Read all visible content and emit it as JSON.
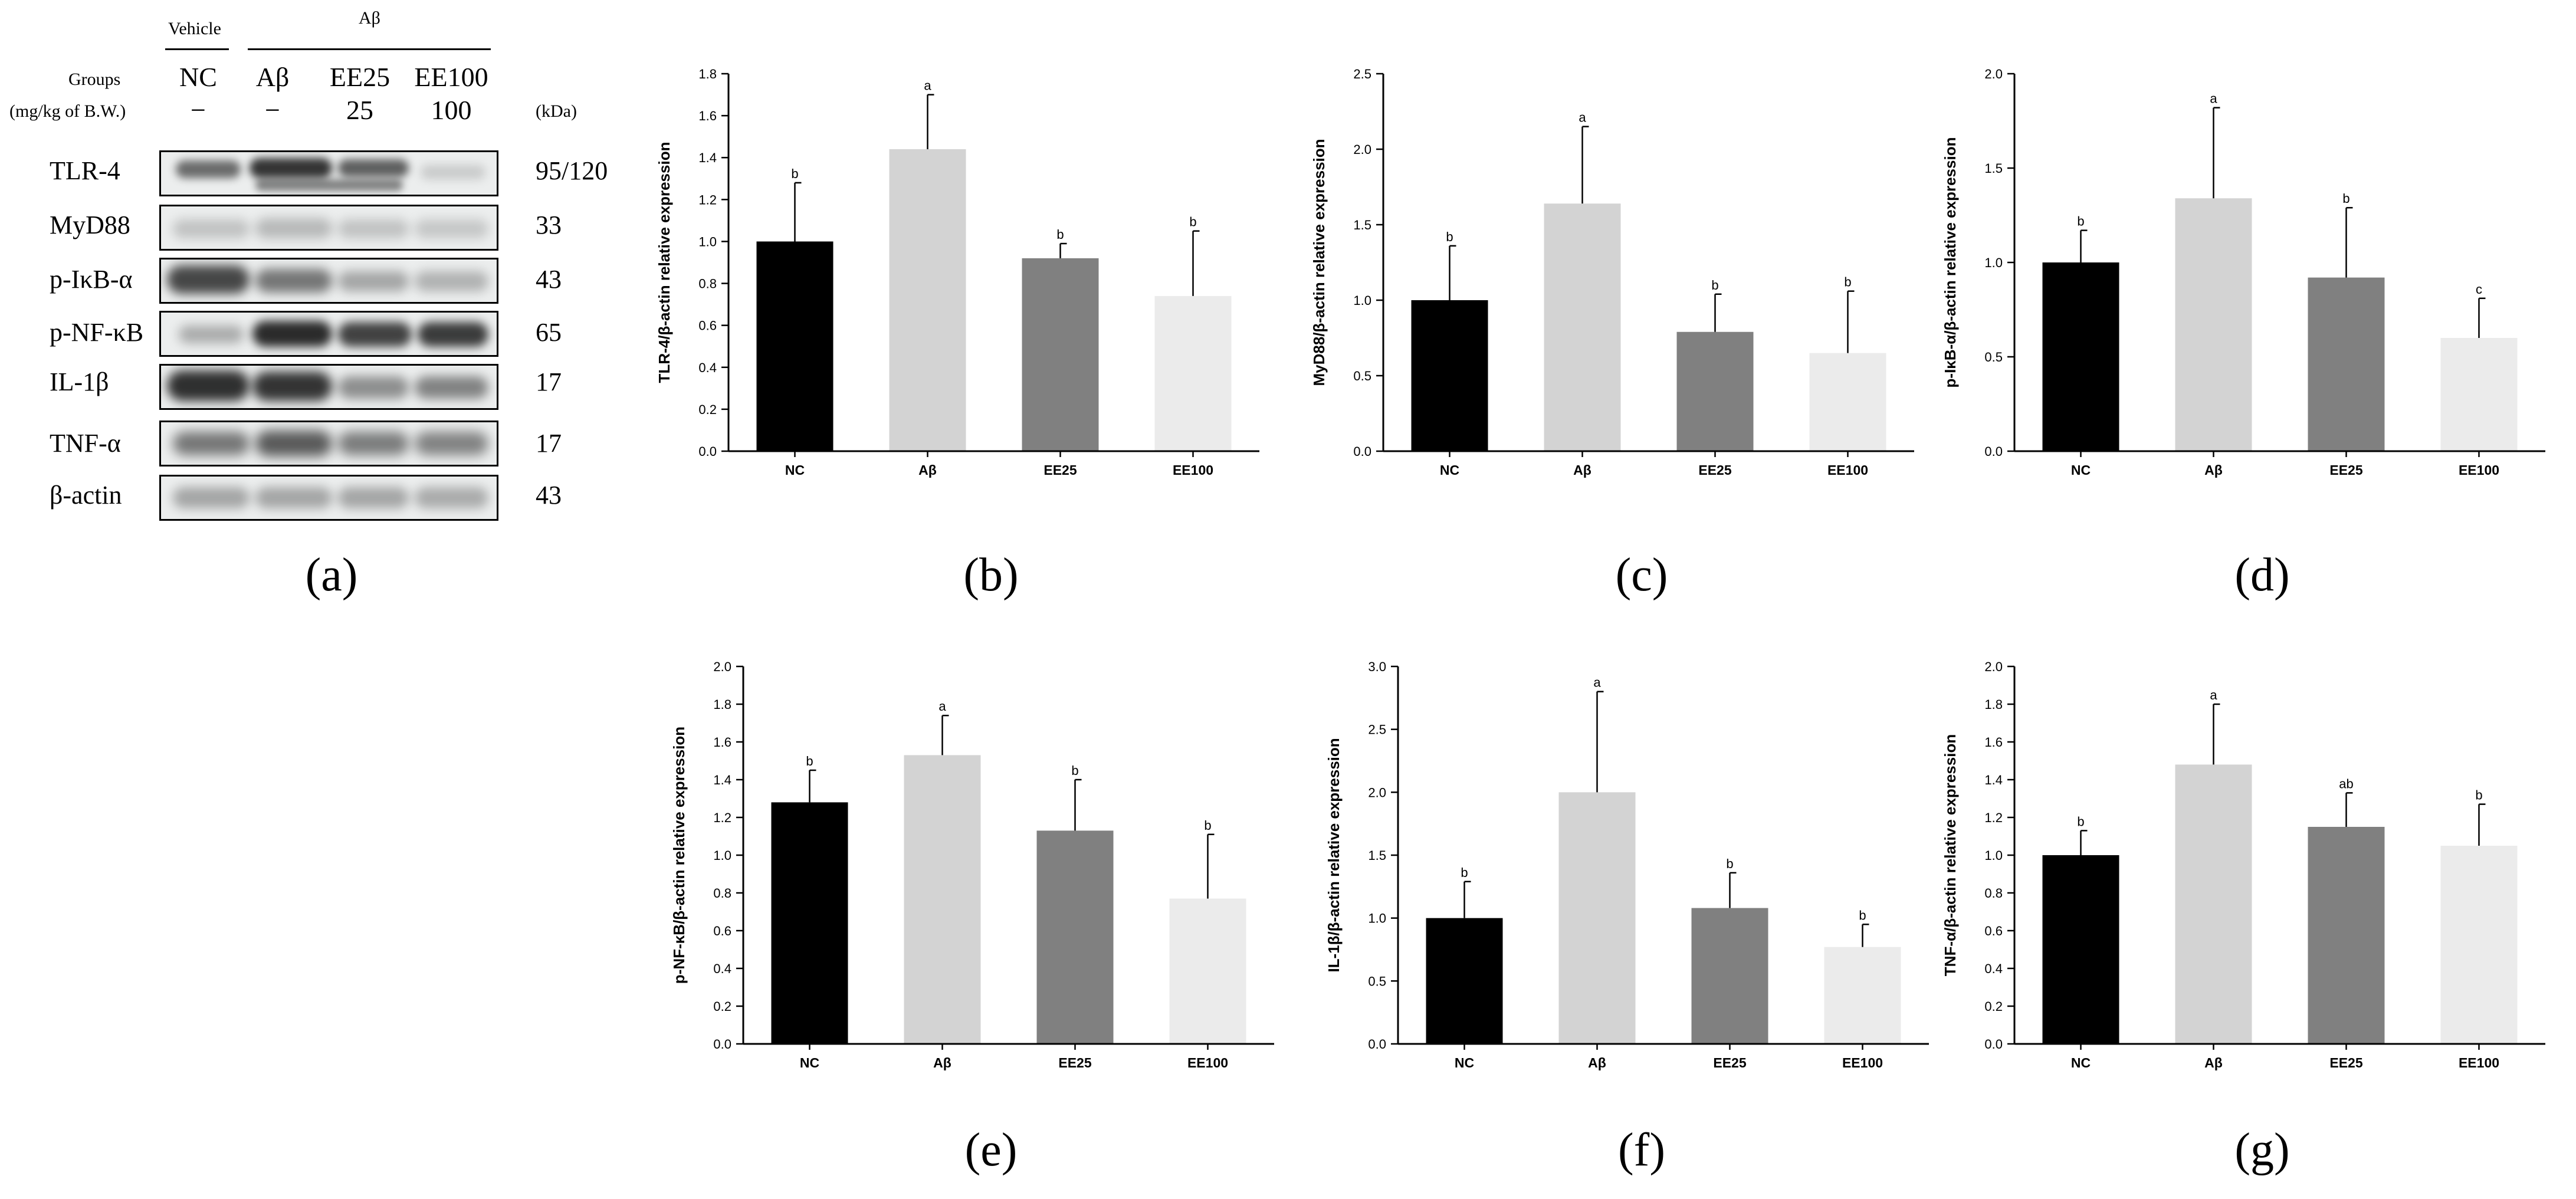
{
  "blot": {
    "vehicle_label": "Vehicle",
    "abeta_label": "Aβ",
    "groups_label": "Groups",
    "dose_label": "(mg/kg of B.W.)",
    "kda_label": "(kDa)",
    "lanes": [
      {
        "name": "NC",
        "dose": "−"
      },
      {
        "name": "Aβ",
        "dose": "−"
      },
      {
        "name": "EE25",
        "dose": "25"
      },
      {
        "name": "EE100",
        "dose": "100"
      }
    ],
    "proteins": [
      {
        "name": "TLR-4",
        "kda": "95/120"
      },
      {
        "name": "MyD88",
        "kda": "33"
      },
      {
        "name": "p-IκB-α",
        "kda": "43"
      },
      {
        "name": "p-NF-κB",
        "kda": "65"
      },
      {
        "name": "IL-1β",
        "kda": "17"
      },
      {
        "name": "TNF-α",
        "kda": "17"
      },
      {
        "name": "β-actin",
        "kda": "43"
      }
    ],
    "caption": "(a)"
  },
  "colors": {
    "bars": [
      "#000000",
      "#d3d3d3",
      "#808080",
      "#ebebeb"
    ],
    "axis": "#000000",
    "blot_bg": "#eceeee"
  },
  "chart_data": [
    {
      "panel": "(b)",
      "type": "bar",
      "categories": [
        "NC",
        "Aβ",
        "EE25",
        "EE100"
      ],
      "values": [
        1.0,
        1.44,
        0.92,
        0.74
      ],
      "errors": [
        0.28,
        0.26,
        0.07,
        0.31
      ],
      "letters": [
        "b",
        "a",
        "b",
        "b"
      ],
      "ylabel": "TLR-4/β-actin relative expression",
      "ylim": [
        0,
        1.8
      ],
      "ticks": [
        "0.0",
        "0.2",
        "0.4",
        "0.6",
        "0.8",
        "1.0",
        "1.2",
        "1.4",
        "1.6",
        "1.8"
      ]
    },
    {
      "panel": "(c)",
      "type": "bar",
      "categories": [
        "NC",
        "Aβ",
        "EE25",
        "EE100"
      ],
      "values": [
        1.0,
        1.64,
        0.79,
        0.65
      ],
      "errors": [
        0.36,
        0.51,
        0.25,
        0.41
      ],
      "letters": [
        "b",
        "a",
        "b",
        "b"
      ],
      "ylabel": "MyD88/β-actin relative expression",
      "ylim": [
        0,
        2.5
      ],
      "ticks": [
        "0.0",
        "0.5",
        "1.0",
        "1.5",
        "2.0",
        "2.5"
      ]
    },
    {
      "panel": "(d)",
      "type": "bar",
      "categories": [
        "NC",
        "Aβ",
        "EE25",
        "EE100"
      ],
      "values": [
        1.0,
        1.34,
        0.92,
        0.6
      ],
      "errors": [
        0.17,
        0.48,
        0.37,
        0.21
      ],
      "letters": [
        "b",
        "a",
        "b",
        "c"
      ],
      "ylabel": "p-IκB-α/β-actin relative expression",
      "ylim": [
        0,
        2.0
      ],
      "ticks": [
        "0.0",
        "0.5",
        "1.0",
        "1.5",
        "2.0"
      ]
    },
    {
      "panel": "(e)",
      "type": "bar",
      "categories": [
        "NC",
        "Aβ",
        "EE25",
        "EE100"
      ],
      "values": [
        1.28,
        1.53,
        1.13,
        0.77
      ],
      "errors": [
        0.17,
        0.21,
        0.27,
        0.34
      ],
      "letters": [
        "b",
        "a",
        "b",
        "b"
      ],
      "ylabel": "p-NF-κB/β-actin relative expression",
      "ylim": [
        0,
        2.0
      ],
      "ticks": [
        "0.0",
        "0.2",
        "0.4",
        "0.6",
        "0.8",
        "1.0",
        "1.2",
        "1.4",
        "1.6",
        "1.8",
        "2.0"
      ]
    },
    {
      "panel": "(f)",
      "type": "bar",
      "categories": [
        "NC",
        "Aβ",
        "EE25",
        "EE100"
      ],
      "values": [
        1.0,
        2.0,
        1.08,
        0.77
      ],
      "errors": [
        0.29,
        0.8,
        0.28,
        0.18
      ],
      "letters": [
        "b",
        "a",
        "b",
        "b"
      ],
      "ylabel": "IL-1β/β-actin relative expression",
      "ylim": [
        0,
        3.0
      ],
      "ticks": [
        "0.0",
        "0.5",
        "1.0",
        "1.5",
        "2.0",
        "2.5",
        "3.0"
      ]
    },
    {
      "panel": "(g)",
      "type": "bar",
      "categories": [
        "NC",
        "Aβ",
        "EE25",
        "EE100"
      ],
      "values": [
        1.0,
        1.48,
        1.15,
        1.05
      ],
      "errors": [
        0.13,
        0.32,
        0.18,
        0.22
      ],
      "letters": [
        "b",
        "a",
        "ab",
        "b"
      ],
      "ylabel": "TNF-α/β-actin relative expression",
      "ylim": [
        0,
        2.0
      ],
      "ticks": [
        "0.0",
        "0.2",
        "0.4",
        "0.6",
        "0.8",
        "1.0",
        "1.2",
        "1.4",
        "1.6",
        "1.8",
        "2.0"
      ]
    }
  ]
}
